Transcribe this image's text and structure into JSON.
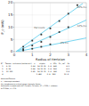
{
  "chart_data": {
    "type": "scatter",
    "xlabel": "Radius of Hertzian",
    "ylabel": "P_c (mN)",
    "xlim": [
      0,
      4
    ],
    "ylim": [
      0,
      20
    ],
    "xticks": [
      0,
      1,
      2,
      3,
      4
    ],
    "yticks": [
      0,
      5,
      10,
      15,
      20
    ],
    "grid": true,
    "series": [
      {
        "type": "line",
        "x": [
          0.1,
          3.8
        ],
        "values": [
          0.03,
          19.64
        ],
        "color": "#55ccee"
      },
      {
        "type": "scatter",
        "x": [
          0.5,
          1.0,
          1.5,
          2.0,
          2.5,
          3.0,
          3.5
        ],
        "values": [
          2.0,
          4.5,
          7.0,
          9.5,
          12.5,
          15.5,
          19.0
        ],
        "color": "#333333",
        "marker": "square"
      },
      {
        "type": "line",
        "x": [
          0.1,
          4
        ],
        "values": [
          0.03,
          12.9
        ],
        "color": "#55ccee"
      },
      {
        "type": "scatter",
        "x": [
          0.5,
          1.0,
          1.5,
          2.0,
          2.5,
          3.0
        ],
        "values": [
          1.0,
          2.5,
          4.0,
          6.0,
          8.0,
          10.0
        ],
        "color": "#333333",
        "marker": "square"
      },
      {
        "type": "line",
        "x": [
          0.2,
          4
        ],
        "values": [
          0.09,
          5.6
        ],
        "color": "#55ccee"
      },
      {
        "type": "scatter",
        "x": [
          0.5,
          1.0,
          1.5,
          2.0
        ],
        "values": [
          0.5,
          1.2,
          2.0,
          3.0
        ],
        "color": "#333333",
        "marker": "square"
      }
    ],
    "annotations": [
      {
        "text": "20% Co",
        "x": 3.48,
        "y": 18.2
      },
      {
        "text": "12% Co",
        "x": 3.48,
        "y": 10.5
      },
      {
        "text": "4% Co",
        "x": 2.55,
        "y": 3.6
      },
      {
        "text": "Parcours",
        "x": 1.1,
        "y": 10.0
      }
    ],
    "table": [
      "N°  Tenour vulcanus(material)  n    alpha     n  KIc  Pc_ref  Hu",
      " 1   6-10                   0.64  14-10.22  0.8  840         8.2",
      " 2   6-18                   0.98  14-10.22  0.8  560         8.2",
      " 3   10-100                 0.43  14-10.11  0.6  380         5.8",
      " 4                               1-480     0.8  560        10.4"
    ],
    "footer": [
      "Beta-coefficients",
      "n  : intercept constant",
      "Kic: toughness or critical stress intensity factor",
      "Reference is made with WC-Co with: Co ratio, PC = 0.62, F relation:",
      "BTO-GMn, n = 0.2"
    ]
  }
}
